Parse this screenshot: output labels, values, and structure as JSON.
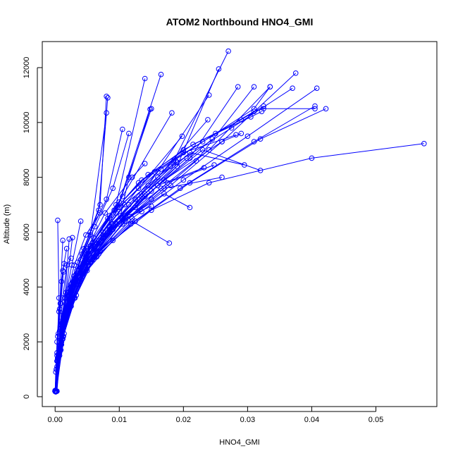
{
  "chart_data": {
    "type": "line",
    "title": "ATOM2 Northbound HNO4_GMI",
    "xlabel": "HNO4_GMI",
    "ylabel": "Altitude (m)",
    "xlim": [
      -0.002,
      0.0595
    ],
    "ylim": [
      -360,
      12950
    ],
    "xticks": [
      0.0,
      0.01,
      0.02,
      0.03,
      0.04,
      0.05
    ],
    "xtick_labels": [
      "0.00",
      "0.01",
      "0.02",
      "0.03",
      "0.04",
      "0.05"
    ],
    "yticks": [
      0,
      2000,
      4000,
      6000,
      8000,
      10000,
      12000
    ],
    "ytick_labels": [
      "0",
      "2000",
      "4000",
      "6000",
      "8000",
      "10000",
      "12000"
    ],
    "grid": false,
    "series_color": "#0000ff",
    "marker": "open-circle",
    "series": [
      {
        "x": [
          0.0,
          0.0005,
          0.0012,
          0.0025,
          0.0045,
          0.0068,
          0.0102,
          0.0115,
          0.0148
        ],
        "y": [
          200,
          1500,
          2800,
          3900,
          4800,
          5600,
          6600,
          8000,
          10480
        ]
      },
      {
        "x": [
          0.0001,
          0.0006,
          0.0014,
          0.0032,
          0.0055,
          0.0088,
          0.0135,
          0.0185,
          0.027
        ],
        "y": [
          180,
          1600,
          3000,
          4300,
          5300,
          6300,
          7400,
          8600,
          12600
        ]
      },
      {
        "x": [
          0.0,
          0.0004,
          0.001,
          0.0022,
          0.004,
          0.0075,
          0.0125,
          0.019,
          0.0255
        ],
        "y": [
          220,
          1400,
          2600,
          3700,
          4700,
          5800,
          6900,
          8400,
          11950
        ]
      },
      {
        "x": [
          0.0002,
          0.0007,
          0.0015,
          0.003,
          0.0052,
          0.0085,
          0.014,
          0.021,
          0.0285
        ],
        "y": [
          200,
          1700,
          3100,
          4200,
          5200,
          6200,
          7300,
          8700,
          11300
        ]
      },
      {
        "x": [
          0.0,
          0.0005,
          0.0013,
          0.0028,
          0.005,
          0.009,
          0.015,
          0.022,
          0.031
        ],
        "y": [
          200,
          1500,
          2900,
          4000,
          5000,
          6100,
          7200,
          8600,
          11300
        ]
      },
      {
        "x": [
          0.0001,
          0.0008,
          0.0018,
          0.0035,
          0.0062,
          0.0105,
          0.0165,
          0.024,
          0.0335
        ],
        "y": [
          180,
          1800,
          3200,
          4400,
          5400,
          6500,
          7600,
          9000,
          11300
        ]
      },
      {
        "x": [
          0.0,
          0.0006,
          0.0016,
          0.0034,
          0.006,
          0.011,
          0.018,
          0.026,
          0.0375
        ],
        "y": [
          220,
          1600,
          3000,
          4200,
          5100,
          6400,
          7700,
          9300,
          11800
        ]
      },
      {
        "x": [
          0.0002,
          0.0009,
          0.002,
          0.004,
          0.007,
          0.012,
          0.02,
          0.03,
          0.0408
        ],
        "y": [
          200,
          1700,
          3100,
          4300,
          5300,
          6500,
          7900,
          9500,
          11250
        ]
      },
      {
        "x": [
          0.0,
          0.0007,
          0.0017,
          0.0036,
          0.0065,
          0.0118,
          0.0195,
          0.031,
          0.0405
        ],
        "y": [
          200,
          1600,
          2900,
          4100,
          5100,
          6300,
          7600,
          9300,
          10600
        ]
      },
      {
        "x": [
          0.0001,
          0.0008,
          0.0019,
          0.0038,
          0.0068,
          0.0125,
          0.021,
          0.032,
          0.0422
        ],
        "y": [
          180,
          1700,
          3000,
          4200,
          5200,
          6400,
          7800,
          9400,
          10500
        ]
      },
      {
        "x": [
          0.0,
          0.001,
          0.0025,
          0.005,
          0.009,
          0.015,
          0.024,
          0.04,
          0.0575
        ],
        "y": [
          200,
          1900,
          3300,
          4600,
          5700,
          6800,
          7800,
          8700,
          9230
        ]
      },
      {
        "x": [
          0.0001,
          0.0005,
          0.0012,
          0.0025,
          0.0045,
          0.007,
          0.008
        ],
        "y": [
          200,
          1500,
          2800,
          4100,
          5400,
          7000,
          10950
        ]
      },
      {
        "x": [
          0.0,
          0.0004,
          0.0011,
          0.0024,
          0.0042,
          0.0068,
          0.0082
        ],
        "y": [
          220,
          1400,
          2700,
          4000,
          5200,
          6800,
          10900
        ]
      },
      {
        "x": [
          0.0002,
          0.0006,
          0.0014,
          0.003,
          0.0055,
          0.008
        ],
        "y": [
          200,
          1600,
          3000,
          4400,
          5900,
          10350
        ]
      },
      {
        "x": [
          0.0,
          0.0005,
          0.0013,
          0.0028,
          0.0055,
          0.0095,
          0.014
        ],
        "y": [
          200,
          1500,
          2900,
          4200,
          5500,
          7000,
          11600
        ]
      },
      {
        "x": [
          0.0001,
          0.0006,
          0.0014,
          0.003,
          0.0058,
          0.01,
          0.0165
        ],
        "y": [
          180,
          1600,
          3000,
          4300,
          5600,
          7100,
          11750
        ]
      },
      {
        "x": [
          0.0,
          0.0007,
          0.0016,
          0.0034,
          0.006,
          0.0105,
          0.0182
        ],
        "y": [
          200,
          1700,
          3100,
          4500,
          5800,
          7300,
          10350
        ]
      },
      {
        "x": [
          0.0001,
          0.0008,
          0.002,
          0.0042,
          0.0075,
          0.013,
          0.0198
        ],
        "y": [
          200,
          1800,
          3300,
          4600,
          6000,
          7600,
          9500
        ]
      },
      {
        "x": [
          0.0,
          0.0009,
          0.0022,
          0.0045,
          0.0085,
          0.0145,
          0.024
        ],
        "y": [
          220,
          1900,
          3400,
          4800,
          6100,
          7700,
          11000
        ]
      },
      {
        "x": [
          0.0002,
          0.001,
          0.0024,
          0.0048,
          0.009,
          0.016,
          0.0238
        ],
        "y": [
          200,
          2000,
          3500,
          4900,
          6300,
          8000,
          10100
        ]
      },
      {
        "x": [
          0.0,
          0.0008,
          0.002,
          0.0044,
          0.008,
          0.0135,
          0.021,
          0.0295
        ],
        "y": [
          200,
          1800,
          3200,
          4500,
          5900,
          7300,
          8900,
          8450
        ]
      },
      {
        "x": [
          0.0001,
          0.0009,
          0.0023,
          0.0047,
          0.0088,
          0.015,
          0.023,
          0.032
        ],
        "y": [
          180,
          1900,
          3400,
          4700,
          6100,
          7500,
          9000,
          8250
        ]
      },
      {
        "x": [
          0.0,
          0.0007,
          0.0018,
          0.0038,
          0.007,
          0.012,
          0.0178
        ],
        "y": [
          200,
          1700,
          3000,
          4200,
          5300,
          6400,
          5600
        ]
      },
      {
        "x": [
          0.0,
          0.0006,
          0.0015,
          0.0032,
          0.006,
          0.01,
          0.017,
          0.021
        ],
        "y": [
          200,
          1600,
          2900,
          4100,
          5200,
          6300,
          7400,
          6900
        ]
      },
      {
        "x": [
          0.0001,
          0.001,
          0.0026,
          0.0052,
          0.0095,
          0.016,
          0.0245
        ],
        "y": [
          200,
          2000,
          3500,
          4900,
          6300,
          7700,
          9400
        ]
      },
      {
        "x": [
          0.0,
          0.0012,
          0.0028,
          0.0055,
          0.01,
          0.017,
          0.026,
          0.029
        ],
        "y": [
          200,
          2100,
          3600,
          5000,
          6400,
          7900,
          9300,
          9600
        ]
      },
      {
        "x": [
          0.0002,
          0.0005,
          0.0011,
          0.002,
          0.0035,
          0.0055,
          0.008,
          0.0105
        ],
        "y": [
          200,
          1500,
          2700,
          3800,
          4900,
          6000,
          7200,
          9750
        ]
      },
      {
        "x": [
          0.0,
          0.0006,
          0.0013,
          0.0024,
          0.004,
          0.0062,
          0.009,
          0.0115
        ],
        "y": [
          220,
          1600,
          2800,
          3900,
          5000,
          6200,
          7600,
          9600
        ]
      },
      {
        "x": [
          0.0003,
          0.0008,
          0.0016,
          0.003,
          0.005,
          0.0078,
          0.012,
          0.014
        ],
        "y": [
          200,
          1700,
          3000,
          4200,
          5400,
          6700,
          8000,
          8500
        ]
      },
      {
        "x": [
          0.0,
          0.0005,
          0.001,
          0.0018,
          0.003,
          0.0048,
          0.007
        ],
        "y": [
          200,
          1400,
          2600,
          3700,
          4800,
          5900,
          6700
        ]
      },
      {
        "x": [
          0.0001,
          0.0004,
          0.0009,
          0.0016,
          0.0026,
          0.004
        ],
        "y": [
          200,
          1300,
          2500,
          3600,
          4800,
          6400
        ]
      },
      {
        "x": [
          0.0,
          0.0003,
          0.0007,
          0.0012
        ],
        "y": [
          200,
          1500,
          3200,
          5700
        ]
      },
      {
        "x": [
          0.0001,
          0.0003,
          0.0006,
          0.0004
        ],
        "y": [
          200,
          1600,
          3600,
          6430
        ]
      },
      {
        "x": [
          0.0,
          0.0006,
          0.0014,
          0.0028,
          0.005,
          0.0085,
          0.0135,
          0.02,
          0.029,
          0.0325
        ],
        "y": [
          200,
          1600,
          2900,
          4100,
          5300,
          6600,
          7900,
          9000,
          10100,
          10600
        ]
      },
      {
        "x": [
          0.0001,
          0.0007,
          0.0016,
          0.0032,
          0.0056,
          0.0092,
          0.0145,
          0.0215,
          0.0305,
          0.0322
        ],
        "y": [
          200,
          1700,
          3000,
          4300,
          5500,
          6800,
          8100,
          9200,
          10200,
          10400
        ]
      },
      {
        "x": [
          0.0,
          0.0005,
          0.0012,
          0.0026,
          0.0048,
          0.0082,
          0.013,
          0.02,
          0.0282
        ],
        "y": [
          200,
          1500,
          2800,
          4000,
          5200,
          6500,
          7800,
          8900,
          9550
        ]
      },
      {
        "x": [
          0.0002,
          0.0008,
          0.0018,
          0.0036,
          0.0062,
          0.01,
          0.0155,
          0.023,
          0.031,
          0.0325,
          0.0405
        ],
        "y": [
          200,
          1800,
          3100,
          4400,
          5600,
          6900,
          8200,
          9300,
          10400,
          10500,
          10500
        ]
      },
      {
        "x": [
          0.0,
          0.0006,
          0.0015,
          0.003,
          0.0055,
          0.0095,
          0.015
        ],
        "y": [
          200,
          1600,
          2900,
          4200,
          5400,
          6700,
          10500
        ]
      },
      {
        "x": [
          0.0001,
          0.0009,
          0.0022,
          0.0044,
          0.0078,
          0.0125,
          0.019
        ],
        "y": [
          200,
          1900,
          3300,
          4600,
          5900,
          7200,
          8550
        ]
      },
      {
        "x": [
          0.0,
          0.001,
          0.0024,
          0.0048,
          0.0085,
          0.0135,
          0.0205
        ],
        "y": [
          220,
          2000,
          3400,
          4700,
          6000,
          7300,
          8700
        ]
      },
      {
        "x": [
          0.0,
          0.0008,
          0.0019,
          0.004,
          0.0072,
          0.0115,
          0.016
        ],
        "y": [
          200,
          1800,
          3200,
          4500,
          5800,
          7000,
          8200
        ]
      },
      {
        "x": [
          0.0001,
          0.0011,
          0.0027,
          0.0052,
          0.009,
          0.014,
          0.0188
        ],
        "y": [
          200,
          2100,
          3500,
          4800,
          6100,
          7400,
          8600
        ]
      },
      {
        "x": [
          0.0,
          0.0012,
          0.003,
          0.0058,
          0.01,
          0.016,
          0.0232
        ],
        "y": [
          200,
          2200,
          3600,
          5000,
          6300,
          7700,
          8350
        ]
      },
      {
        "x": [
          0.0002,
          0.0014,
          0.0033,
          0.0062,
          0.0108,
          0.0175,
          0.0248
        ],
        "y": [
          200,
          2300,
          3700,
          5100,
          6400,
          7800,
          8450
        ]
      },
      {
        "x": [
          0.0,
          0.0013,
          0.0031,
          0.006,
          0.0105,
          0.017,
          0.026
        ],
        "y": [
          220,
          2200,
          3600,
          5000,
          6300,
          7600,
          8000
        ]
      },
      {
        "x": [
          0.0,
          0.0004,
          0.001,
          0.0022,
          0.004,
          0.0065,
          0.01,
          0.015
        ],
        "y": [
          200,
          1400,
          2600,
          3700,
          4700,
          5600,
          6400,
          6950
        ]
      },
      {
        "x": [
          0.0001,
          0.0005,
          0.0012,
          0.0025,
          0.0045,
          0.0072,
          0.011,
          0.0135
        ],
        "y": [
          200,
          1500,
          2700,
          3900,
          4900,
          5800,
          6600,
          6750
        ]
      },
      {
        "x": [
          0.0,
          0.0003,
          0.0008,
          0.0018,
          0.0034,
          0.0055,
          0.0085
        ],
        "y": [
          200,
          1300,
          2500,
          3600,
          4600,
          5500,
          6500
        ]
      },
      {
        "x": [
          0.0002,
          0.0007,
          0.0015,
          0.0028,
          0.0046,
          0.0062
        ],
        "y": [
          200,
          1500,
          2900,
          4100,
          5200,
          5650
        ]
      },
      {
        "x": [
          0.0,
          0.0004,
          0.0009,
          0.0017,
          0.0027
        ],
        "y": [
          200,
          1400,
          2600,
          3800,
          5800
        ]
      },
      {
        "x": [
          0.0001,
          0.0003,
          0.0008,
          0.0015,
          0.0022
        ],
        "y": [
          200,
          1300,
          2500,
          3600,
          5750
        ]
      },
      {
        "x": [
          0.0,
          0.0006,
          0.0015,
          0.0032,
          0.0058,
          0.0098,
          0.0165,
          0.025,
          0.031,
          0.0335
        ],
        "y": [
          200,
          1600,
          3000,
          4300,
          5600,
          6900,
          8300,
          9600,
          10500,
          11300
        ]
      },
      {
        "x": [
          0.0,
          0.0007,
          0.0017,
          0.0036,
          0.0064,
          0.0108,
          0.018,
          0.0275,
          0.037
        ],
        "y": [
          220,
          1700,
          3100,
          4400,
          5700,
          7000,
          8400,
          9800,
          11250
        ]
      },
      {
        "x": [
          0.0001,
          0.0002,
          0.0004,
          0.0008,
          0.0012,
          0.0018
        ],
        "y": [
          200,
          1000,
          2200,
          3400,
          4600,
          5400
        ]
      },
      {
        "x": [
          0.0,
          0.0001,
          0.0003,
          0.0006,
          0.001,
          0.0014
        ],
        "y": [
          200,
          900,
          2000,
          3100,
          4200,
          4850
        ]
      },
      {
        "x": [
          0.0,
          0.0002,
          0.0005,
          0.0009,
          0.0013
        ],
        "y": [
          200,
          1000,
          2300,
          3400,
          4550
        ]
      },
      {
        "x": [
          0.0001,
          0.0003,
          0.0007,
          0.0012,
          0.0018,
          0.0025
        ],
        "y": [
          200,
          1100,
          2400,
          3600,
          4800,
          5050
        ]
      }
    ]
  }
}
